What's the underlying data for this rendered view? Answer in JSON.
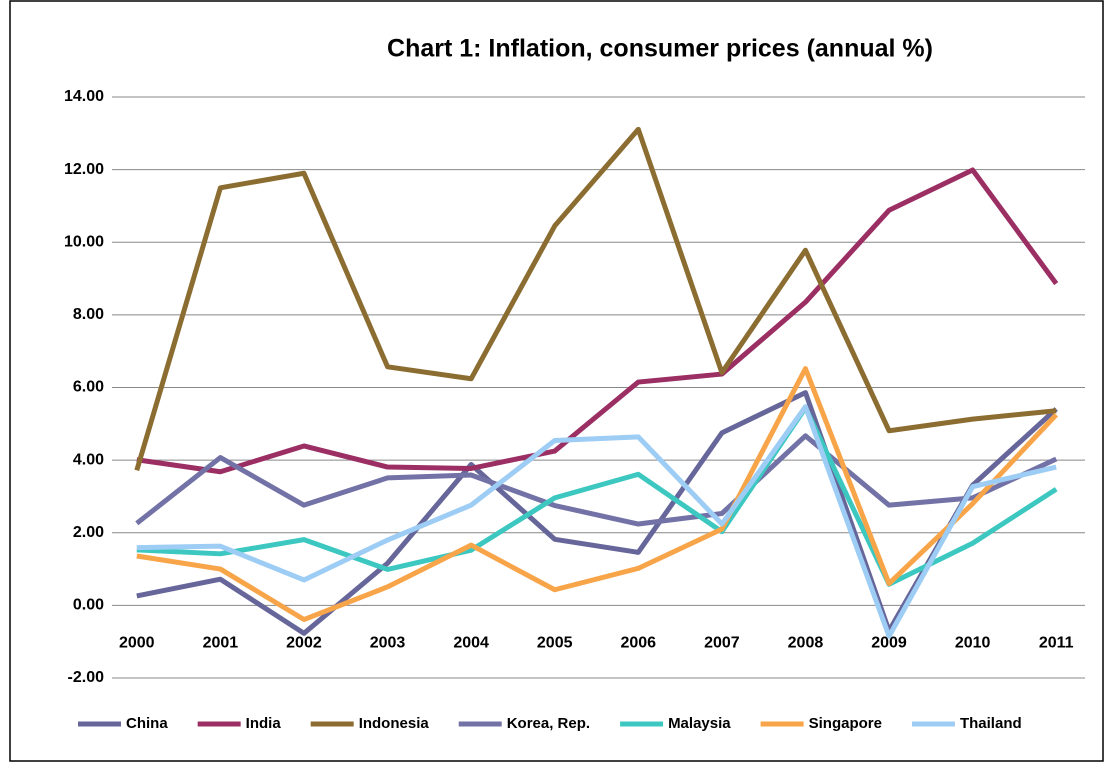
{
  "chart_data": {
    "type": "line",
    "title": "Chart 1: Inflation, consumer prices (annual %)",
    "categories": [
      "2000",
      "2001",
      "2002",
      "2003",
      "2004",
      "2005",
      "2006",
      "2007",
      "2008",
      "2009",
      "2010",
      "2011"
    ],
    "series": [
      {
        "name": "China",
        "color": "#66669a",
        "values": [
          0.26,
          0.72,
          -0.77,
          1.16,
          3.88,
          1.82,
          1.46,
          4.75,
          5.86,
          -0.7,
          3.31,
          5.41
        ]
      },
      {
        "name": "India",
        "color": "#9b2f63",
        "values": [
          4.01,
          3.68,
          4.39,
          3.81,
          3.77,
          4.25,
          6.15,
          6.37,
          8.35,
          10.88,
          11.99,
          8.86
        ]
      },
      {
        "name": "Indonesia",
        "color": "#8c6d31",
        "values": [
          3.72,
          11.5,
          11.9,
          6.57,
          6.24,
          10.45,
          13.11,
          6.41,
          9.78,
          4.81,
          5.13,
          5.36
        ]
      },
      {
        "name": "Korea, Rep.",
        "color": "#7272a6",
        "values": [
          2.26,
          4.07,
          2.76,
          3.51,
          3.59,
          2.75,
          2.24,
          2.53,
          4.67,
          2.76,
          2.96,
          4.03
        ]
      },
      {
        "name": "Malaysia",
        "color": "#3cc8c0",
        "values": [
          1.53,
          1.42,
          1.81,
          0.99,
          1.52,
          2.96,
          3.61,
          2.03,
          5.44,
          0.58,
          1.71,
          3.2
        ]
      },
      {
        "name": "Singapore",
        "color": "#f8a54a",
        "values": [
          1.36,
          1.0,
          -0.39,
          0.51,
          1.66,
          0.43,
          1.02,
          2.1,
          6.52,
          0.6,
          2.8,
          5.25
        ]
      },
      {
        "name": "Thailand",
        "color": "#9dcdf5",
        "values": [
          1.59,
          1.63,
          0.7,
          1.8,
          2.76,
          4.54,
          4.64,
          2.24,
          5.47,
          -0.85,
          3.27,
          3.81
        ]
      }
    ],
    "ylim": [
      -2,
      14
    ],
    "yticks": [
      {
        "value": -2,
        "label": "-2.00"
      },
      {
        "value": 0,
        "label": "0.00"
      },
      {
        "value": 2,
        "label": "2.00"
      },
      {
        "value": 4,
        "label": "4.00"
      },
      {
        "value": 6,
        "label": "6.00"
      },
      {
        "value": 8,
        "label": "8.00"
      },
      {
        "value": 10,
        "label": "10.00"
      },
      {
        "value": 12,
        "label": "12.00"
      },
      {
        "value": 14,
        "label": "14.00"
      }
    ],
    "grid": true,
    "legend": "bottom"
  }
}
